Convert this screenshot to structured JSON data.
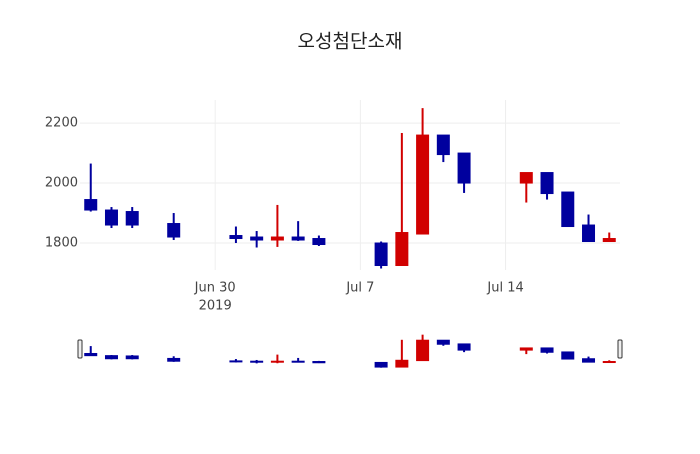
{
  "chart_data": {
    "type": "candlestick",
    "title": "오성첨단소재",
    "x": [
      "2019-06-24",
      "2019-06-25",
      "2019-06-26",
      "2019-06-28",
      "2019-07-01",
      "2019-07-02",
      "2019-07-03",
      "2019-07-04",
      "2019-07-05",
      "2019-07-08",
      "2019-07-09",
      "2019-07-10",
      "2019-07-11",
      "2019-07-12",
      "2019-07-15",
      "2019-07-16",
      "2019-07-17",
      "2019-07-18",
      "2019-07-19"
    ],
    "open": [
      1945,
      1910,
      1905,
      1865,
      1825,
      1820,
      1810,
      1820,
      1815,
      1800,
      1725,
      1830,
      2160,
      2100,
      2000,
      2035,
      1970,
      1860,
      1805
    ],
    "high": [
      2065,
      1920,
      1920,
      1900,
      1855,
      1840,
      1927,
      1873,
      1825,
      1805,
      2167,
      2250,
      2160,
      2100,
      2035,
      2035,
      1970,
      1895,
      1835
    ],
    "low": [
      1905,
      1850,
      1850,
      1810,
      1800,
      1785,
      1787,
      1807,
      1790,
      1715,
      1725,
      1830,
      2070,
      1967,
      1935,
      1945,
      1855,
      1805,
      1805
    ],
    "close": [
      1910,
      1860,
      1860,
      1820,
      1815,
      1810,
      1820,
      1810,
      1795,
      1725,
      1835,
      2160,
      2095,
      2000,
      2035,
      1965,
      1855,
      1805,
      1815
    ],
    "increasing_color": "#d10000",
    "decreasing_color": "#00009e",
    "xlim": [
      "2019-06-23",
      "2019-07-20"
    ],
    "xticks": [
      {
        "value": "2019-06-30",
        "label": "Jun 30"
      },
      {
        "value": "2019-07-07",
        "label": "Jul 7"
      },
      {
        "value": "2019-07-14",
        "label": "Jul 14"
      }
    ],
    "x_year_label": "2019",
    "ylim": [
      1710,
      2277
    ],
    "yticks": [
      1800,
      2000,
      2200
    ],
    "grid": true,
    "rangeslider": true
  }
}
